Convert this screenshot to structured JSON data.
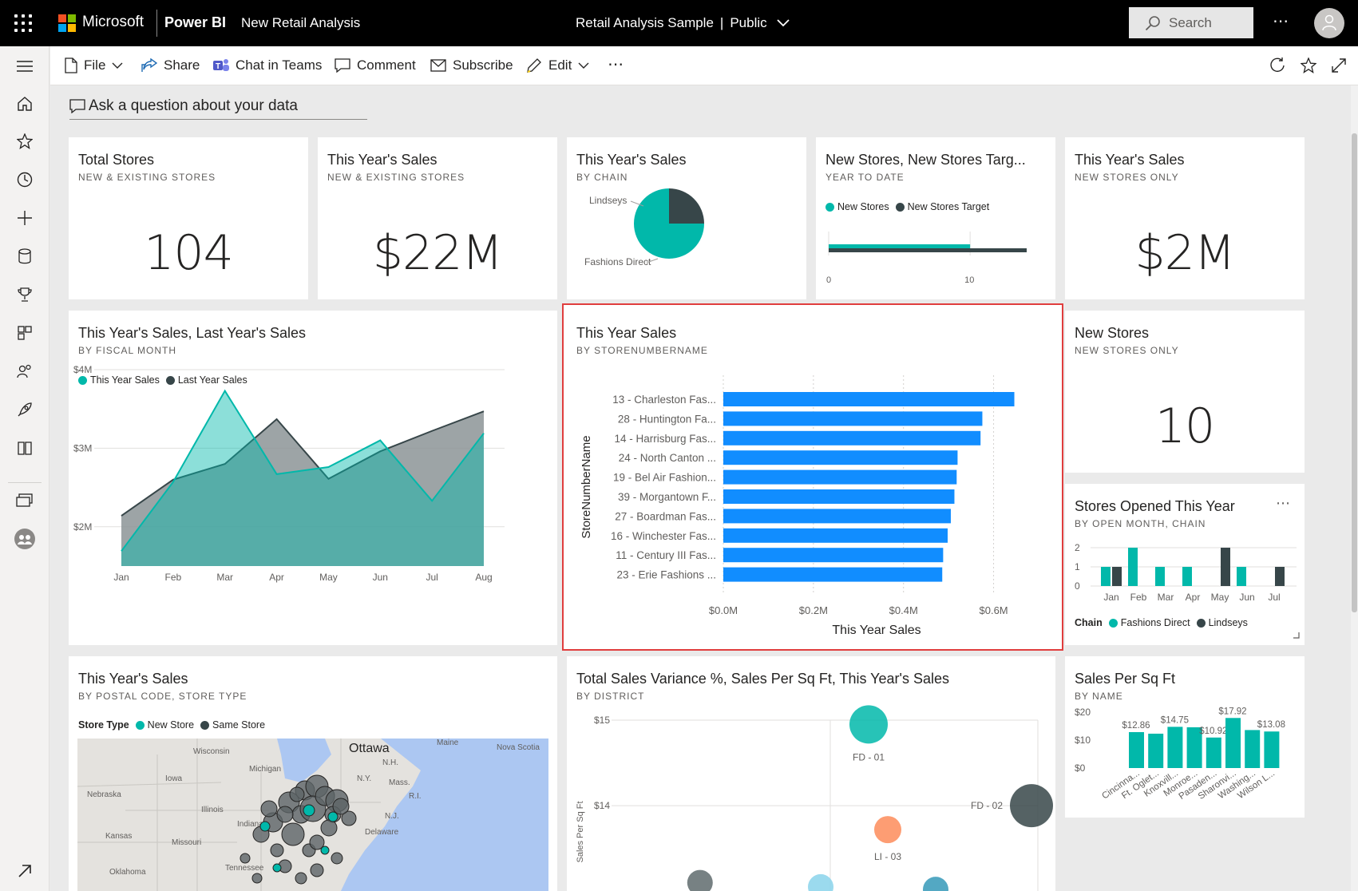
{
  "topbar": {
    "brand": "Microsoft",
    "product": "Power BI",
    "report_name": "New Retail Analysis",
    "workspace_title": "Retail Analysis Sample",
    "separator": "|",
    "visibility": "Public",
    "search_placeholder": "Search",
    "more": "⋯"
  },
  "toolbar": {
    "file": "File",
    "share": "Share",
    "chat_in_teams": "Chat in Teams",
    "comment": "Comment",
    "subscribe": "Subscribe",
    "edit": "Edit",
    "more": "⋯"
  },
  "qa": {
    "placeholder": "Ask a question about your data"
  },
  "tiles": {
    "total_stores": {
      "title": "Total Stores",
      "subtitle": "NEW & EXISTING STORES",
      "value": "104"
    },
    "sales_all": {
      "title": "This Year's Sales",
      "subtitle": "NEW & EXISTING STORES",
      "value": "$22M"
    },
    "sales_chain": {
      "title": "This Year's Sales",
      "subtitle": "BY CHAIN"
    },
    "new_stores_target": {
      "title": "New Stores, New Stores Targ...",
      "subtitle": "YEAR TO DATE"
    },
    "sales_new": {
      "title": "This Year's Sales",
      "subtitle": "NEW STORES ONLY",
      "value": "$2M"
    },
    "sales_vs_last": {
      "title": "This Year's Sales, Last Year's Sales",
      "subtitle": "BY FISCAL MONTH"
    },
    "sales_by_store": {
      "title": "This Year Sales",
      "subtitle": "BY STORENUMBERNAME"
    },
    "new_stores": {
      "title": "New Stores",
      "subtitle": "NEW STORES ONLY",
      "value": "10"
    },
    "stores_opened": {
      "title": "Stores Opened This Year",
      "subtitle": "BY OPEN MONTH, CHAIN",
      "more": "⋯"
    },
    "sales_postal": {
      "title": "This Year's Sales",
      "subtitle": "BY POSTAL CODE, STORE TYPE"
    },
    "variance": {
      "title": "Total Sales Variance %, Sales Per Sq Ft, This Year's Sales",
      "subtitle": "BY DISTRICT"
    },
    "sales_sqft": {
      "title": "Sales Per Sq Ft",
      "subtitle": "BY NAME"
    }
  },
  "colors": {
    "teal": "#01b8aa",
    "dark": "#374649",
    "blue": "#118dff",
    "orange": "#fd8c5b",
    "lightblue": "#8ad4eb"
  },
  "chart_data": [
    {
      "id": "sales_chain",
      "type": "pie",
      "labels": [
        "Lindseys",
        "Fashions Direct"
      ],
      "values": [
        25,
        75
      ]
    },
    {
      "id": "new_stores_target",
      "type": "bar",
      "orientation": "horizontal",
      "series": [
        {
          "name": "New Stores",
          "values": [
            10
          ]
        },
        {
          "name": "New Stores Target",
          "values": [
            14
          ]
        }
      ],
      "xlim": [
        0,
        14
      ],
      "x_ticks": [
        "0",
        "10"
      ]
    },
    {
      "id": "sales_vs_last",
      "type": "area",
      "categories": [
        "Jan",
        "Feb",
        "Mar",
        "Apr",
        "May",
        "Jun",
        "Jul",
        "Aug"
      ],
      "series": [
        {
          "name": "This Year Sales",
          "values": [
            1.69,
            2.57,
            3.73,
            2.67,
            2.76,
            3.1,
            2.33,
            3.19
          ]
        },
        {
          "name": "Last Year Sales",
          "values": [
            2.14,
            2.6,
            2.8,
            3.37,
            2.61,
            2.96,
            3.22,
            3.47
          ]
        }
      ],
      "ylim": [
        1.5,
        4.0
      ],
      "y_ticks": [
        "$4M",
        "$3M",
        "$2M"
      ]
    },
    {
      "id": "sales_by_store",
      "type": "bar",
      "orientation": "horizontal",
      "categories": [
        "13 - Charleston Fas...",
        "28 - Huntington Fa...",
        "14 - Harrisburg Fas...",
        "24 - North Canton ...",
        "19 - Bel Air Fashion...",
        "39 - Morgantown F...",
        "27 - Boardman Fas...",
        "16 - Winchester Fas...",
        "11 - Century III Fas...",
        "23 - Erie Fashions ..."
      ],
      "values": [
        0.646,
        0.575,
        0.571,
        0.52,
        0.518,
        0.513,
        0.505,
        0.498,
        0.488,
        0.486
      ],
      "xlabel": "This Year Sales",
      "ylabel": "StoreNumberName",
      "xlim": [
        0,
        0.7
      ],
      "x_ticks": [
        "$0.0M",
        "$0.2M",
        "$0.4M",
        "$0.6M"
      ]
    },
    {
      "id": "stores_opened",
      "type": "bar",
      "categories": [
        "Jan",
        "Feb",
        "Mar",
        "Apr",
        "May",
        "Jun",
        "Jul"
      ],
      "series": [
        {
          "name": "Fashions Direct",
          "values": [
            1,
            2,
            1,
            1,
            0,
            1,
            0
          ]
        },
        {
          "name": "Lindseys",
          "values": [
            1,
            0,
            0,
            0,
            2,
            0,
            1
          ]
        }
      ],
      "ylim": [
        0,
        2
      ],
      "y_ticks": [
        "2",
        "1",
        "0"
      ],
      "legend_title": "Chain"
    },
    {
      "id": "sales_sqft",
      "type": "bar",
      "categories": [
        "Cincinna...",
        "Ft. Oglet...",
        "Knoxvill...",
        "Monroe...",
        "Pasaden...",
        "Sharonvi...",
        "Washing...",
        "Wilson L..."
      ],
      "values": [
        12.86,
        12.3,
        14.75,
        14.6,
        10.92,
        17.92,
        13.6,
        13.08
      ],
      "data_labels": [
        "$12.86",
        "",
        "$14.75",
        "",
        "$10.92",
        "$17.92",
        "",
        "$13.08"
      ],
      "ylim": [
        0,
        20
      ],
      "y_ticks": [
        "$20",
        "$10",
        "$0"
      ]
    },
    {
      "id": "variance",
      "type": "scatter",
      "points": [
        {
          "label": "FD - 01",
          "x": 0.2,
          "y": 14.95,
          "size": 24,
          "color": "#01b8aa"
        },
        {
          "label": "FD - 02",
          "x": 1.05,
          "y": 14.0,
          "size": 27,
          "color": "#374649"
        },
        {
          "label": "LI - 03",
          "x": 0.3,
          "y": 13.72,
          "size": 17,
          "color": "#fd8c5b"
        },
        {
          "label": "",
          "x": -0.68,
          "y": 13.1,
          "size": 16,
          "color": "#5f6b6d"
        },
        {
          "label": "",
          "x": -0.05,
          "y": 13.05,
          "size": 16,
          "color": "#8ad4eb"
        },
        {
          "label": "",
          "x": 0.55,
          "y": 13.02,
          "size": 16,
          "color": "#3599b8"
        }
      ],
      "ylim": [
        12.9,
        15.0
      ],
      "y_ticks": [
        "$15",
        "$14"
      ],
      "ylabel": "Sales Per Sq Ft"
    }
  ],
  "legends": {
    "new_stores": "New Stores",
    "new_stores_target": "New Stores Target",
    "this_year": "This Year Sales",
    "last_year": "Last Year Sales",
    "chain_title": "Chain",
    "fashions_direct": "Fashions Direct",
    "lindseys": "Lindseys",
    "store_type_title": "Store Type",
    "new_store": "New Store",
    "same_store": "Same Store"
  },
  "map": {
    "labels": [
      "Ottawa",
      "Maine",
      "Nova Scotia",
      "Wisconsin",
      "Michigan",
      "N.Y.",
      "N.H.",
      "Iowa",
      "Mass.",
      "Nebraska",
      "Illinois",
      "R.I.",
      "Indiana",
      "N.J.",
      "Kansas",
      "Missouri",
      "Delaware",
      "Oklahoma",
      "Tennessee"
    ]
  }
}
